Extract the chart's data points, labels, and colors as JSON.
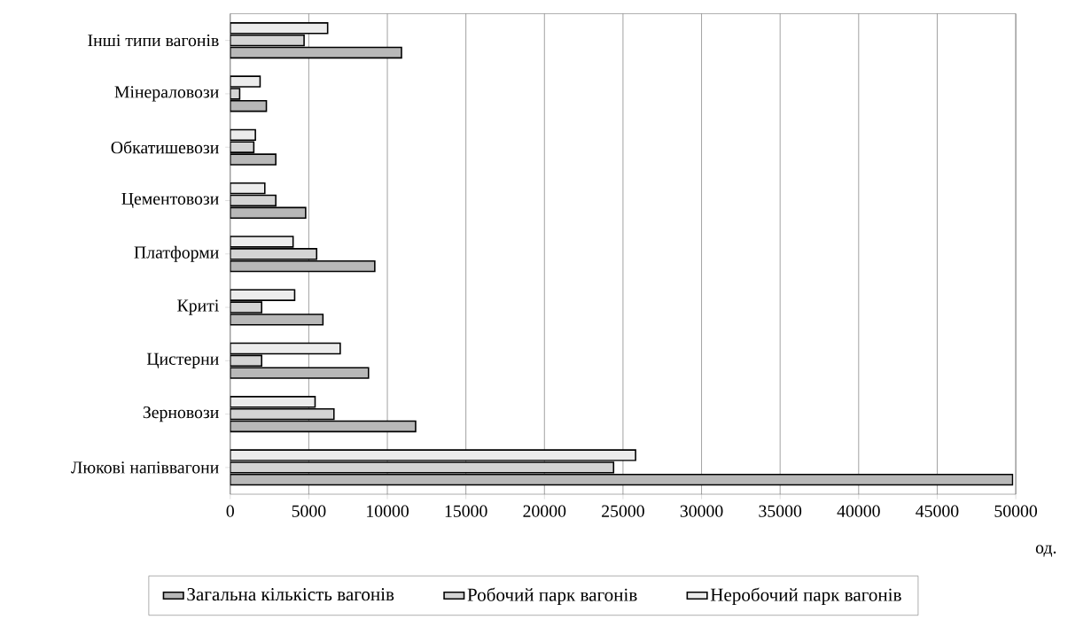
{
  "chart_data": {
    "type": "bar",
    "orientation": "horizontal",
    "xlabel": "од.",
    "categories": [
      "Інші типи вагонів",
      "Мінераловози",
      "Обкатишевози",
      "Цементовози",
      "Платформи",
      "Криті",
      "Цистерни",
      "Зерновози",
      "Люкові напіввагони"
    ],
    "series": [
      {
        "name": "Загальна кількість вагонів",
        "color": "#b8b8b8",
        "values": [
          10900,
          2300,
          2900,
          4800,
          9200,
          5900,
          8800,
          11800,
          49800
        ]
      },
      {
        "name": "Робочий парк вагонів",
        "color": "#d4d4d4",
        "values": [
          4700,
          600,
          1500,
          2900,
          5500,
          2000,
          2000,
          6600,
          24400
        ]
      },
      {
        "name": "Неробочий парк вагонів",
        "color": "#ececec",
        "values": [
          6200,
          1900,
          1600,
          2200,
          4000,
          4100,
          7000,
          5400,
          25800
        ]
      }
    ],
    "xlim": [
      0,
      50000
    ],
    "xticks": [
      0,
      5000,
      10000,
      15000,
      20000,
      25000,
      30000,
      35000,
      40000,
      45000,
      50000
    ],
    "grid": "x",
    "legend": "bottom"
  }
}
